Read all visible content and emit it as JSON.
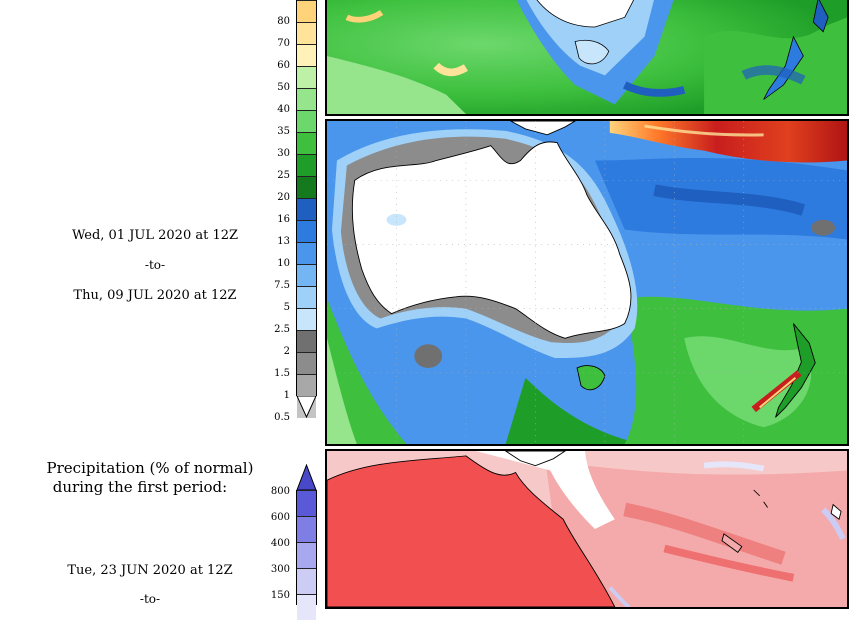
{
  "period_a": {
    "start": "Wed, 01 JUL 2020 at 12Z",
    "sep": "-to-",
    "end": "Thu, 09 JUL 2020 at 12Z"
  },
  "colorbar_upper": {
    "labels": [
      "80",
      "70",
      "60",
      "50",
      "40",
      "35",
      "30",
      "25",
      "20",
      "16",
      "13",
      "10",
      "7.5",
      "5",
      "2.5",
      "2",
      "1.5",
      "1",
      "0.5"
    ],
    "colors": [
      "#ffd37a",
      "#ffe39a",
      "#fff1b8",
      "#bff0a8",
      "#96e48c",
      "#6cd86c",
      "#3ec03e",
      "#1e9e28",
      "#157a1e",
      "#1f5fbf",
      "#2e7be0",
      "#4a96ec",
      "#74b6f4",
      "#9ed0f8",
      "#c8e6fb",
      "#707070",
      "#8c8c8c",
      "#a8a8a8",
      "#c4c4c4"
    ]
  },
  "period_b": {
    "title_line1": "Precipitation (% of normal)",
    "title_line2": "during the first period:",
    "start": "Tue, 23 JUN 2020 at 12Z",
    "sep": "-to-"
  },
  "colorbar_lower": {
    "labels": [
      "800",
      "600",
      "400",
      "300",
      "150"
    ],
    "colors": [
      "#5a5ad8",
      "#7e7ee4",
      "#a8a8ee",
      "#ccccf5",
      "#e6e6fa"
    ]
  }
}
